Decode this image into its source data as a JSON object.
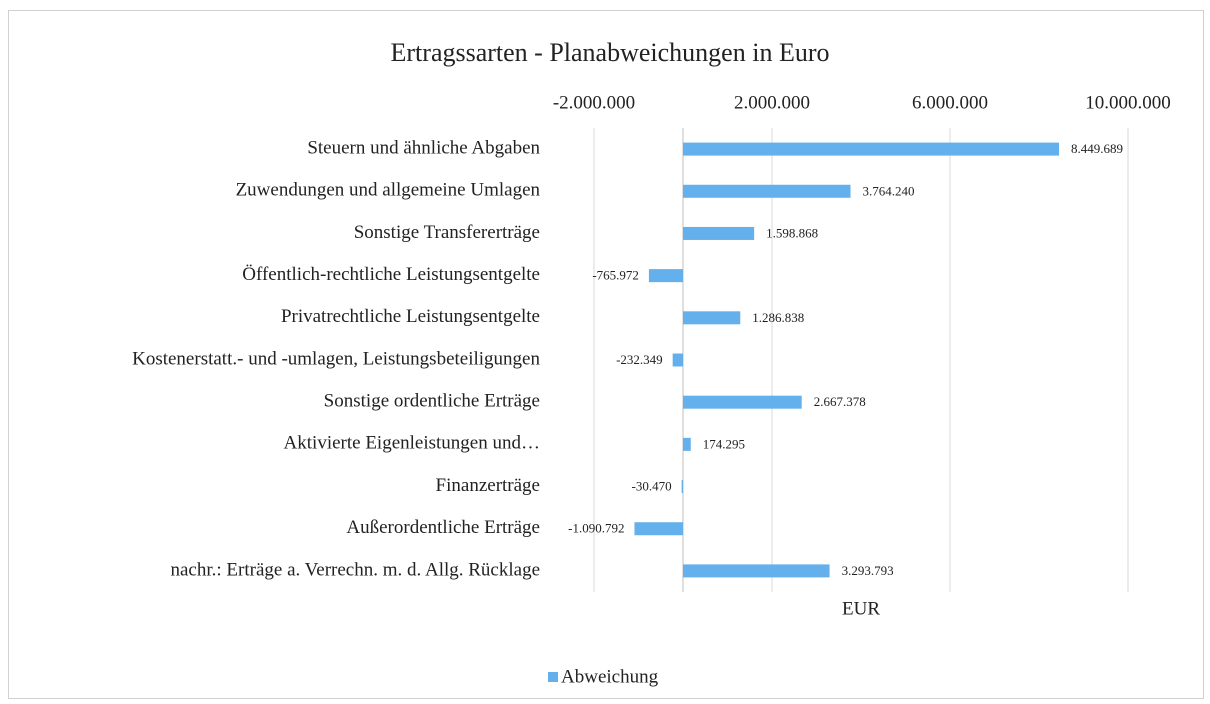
{
  "chart_data": {
    "type": "barh",
    "title": "Ertragssarten - Planabweichungen in Euro",
    "categories": [
      "Steuern und ähnliche Abgaben",
      "Zuwendungen und allgemeine Umlagen",
      "Sonstige Transfererträge",
      "Öffentlich-rechtliche Leistungsentgelte",
      "Privatrechtliche Leistungsentgelte",
      "Kostenerstatt.- und -umlagen, Leistungsbeteiligungen",
      "Sonstige ordentliche Erträge",
      "Aktivierte Eigenleistungen und…",
      "Finanzerträge",
      "Außerordentliche Erträge",
      "nachr.: Erträge a. Verrechn. m. d. Allg. Rücklage"
    ],
    "series": [
      {
        "name": "Abweichung",
        "color": "#63b0ec",
        "values": [
          8449689,
          3764240,
          1598868,
          -765972,
          1286838,
          -232349,
          2667378,
          174295,
          -30470,
          -1090792,
          3293793
        ],
        "value_labels": [
          "8.449.689",
          "3.764.240",
          "1.598.868",
          "-765.972",
          "1.286.838",
          "-232.349",
          "2.667.378",
          "174.295",
          "-30.470",
          "-1.090.792",
          "3.293.793"
        ]
      }
    ],
    "xlabel": "EUR",
    "xlim": [
      -2000000,
      10000000
    ],
    "xticks": [
      {
        "value": -2000000,
        "label": "-2.000.000"
      },
      {
        "value": 2000000,
        "label": "2.000.000"
      },
      {
        "value": 6000000,
        "label": "6.000.000"
      },
      {
        "value": 10000000,
        "label": "10.000.000"
      }
    ],
    "grid": true,
    "legend": "bottom"
  }
}
